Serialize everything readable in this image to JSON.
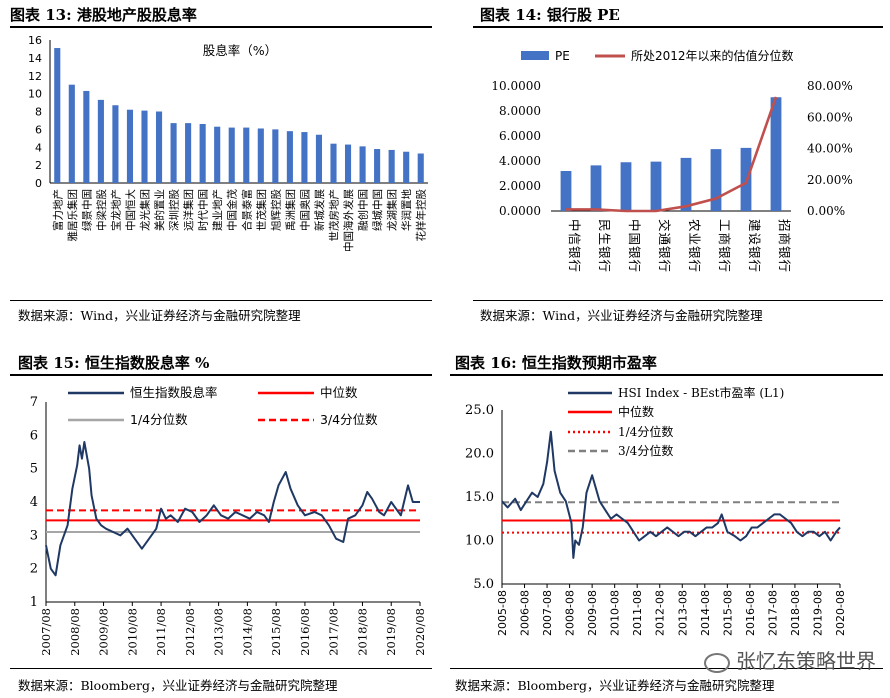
{
  "charts": [
    {
      "title": "图表 13:  港股地产股股息率",
      "source": "数据来源：Wind，兴业证券经济与金融研究院整理",
      "chart_data": {
        "type": "bar",
        "legend": "股息率（%）",
        "categories": [
          "富力地产",
          "雅居乐集团",
          "绿景中国",
          "中梁控股",
          "宝龙地产",
          "中国恒大",
          "龙光集团",
          "美的置业",
          "深圳控股",
          "远洋集团",
          "时代中国",
          "建业地产",
          "中国金茂",
          "合景泰富",
          "世茂集团",
          "旭辉控股",
          "禹洲集团",
          "中国奥园",
          "新城发展",
          "世茂房地产",
          "中国海外发展",
          "融创中国",
          "绿城中国",
          "龙湖集团",
          "华润置地",
          "花样年控股"
        ],
        "values": [
          15.1,
          11.0,
          10.3,
          9.3,
          8.7,
          8.2,
          8.1,
          8.0,
          6.7,
          6.7,
          6.6,
          6.3,
          6.2,
          6.2,
          6.1,
          6.0,
          5.8,
          5.7,
          5.4,
          4.4,
          4.3,
          4.1,
          3.8,
          3.7,
          3.5,
          3.3
        ],
        "ylim": [
          0,
          16
        ],
        "yticks": [
          "0",
          "2",
          "4",
          "6",
          "8",
          "10",
          "12",
          "14",
          "16"
        ],
        "color": "#4472C4"
      }
    },
    {
      "title": "图表 14:  银行股 PE",
      "source": "数据来源：Wind，兴业证券经济与金融研究院整理",
      "chart_data": {
        "type": "bar",
        "categories": [
          "中信银行",
          "民生银行",
          "中国银行",
          "交通银行",
          "农业银行",
          "工商银行",
          "建设银行",
          "招商银行"
        ],
        "series": [
          {
            "name": "PE",
            "type": "bar",
            "axis": "left",
            "values": [
              3.2,
              3.65,
              3.9,
              3.95,
              4.25,
              4.95,
              5.05,
              9.1
            ],
            "color": "#4472C4"
          },
          {
            "name": "所处2012年以来的估值分位数",
            "type": "line",
            "axis": "right",
            "values": [
              1,
              1,
              0,
              0,
              3,
              8,
              18,
              73
            ],
            "color": "#C0504D"
          }
        ],
        "ylim_left": [
          0,
          10
        ],
        "yticks_left": [
          "0.0000",
          "2.0000",
          "4.0000",
          "6.0000",
          "8.0000",
          "10.0000"
        ],
        "ylim_right": [
          0,
          80
        ],
        "yticks_right": [
          "0.00%",
          "20.00%",
          "40.00%",
          "60.00%",
          "80.00%"
        ]
      }
    },
    {
      "title": "图表 15:  恒生指数股息率 %",
      "source": "数据来源：Bloomberg，兴业证券经济与金融研究院整理",
      "chart_data": {
        "type": "line",
        "x_start": "2007-08",
        "x_end": "2020-08",
        "xticks": [
          "2007/08",
          "2008/08",
          "2009/08",
          "2010/08",
          "2011/08",
          "2012/08",
          "2013/08",
          "2014/08",
          "2015/08",
          "2016/08",
          "2017/08",
          "2018/08",
          "2019/08",
          "2020/08"
        ],
        "ylim": [
          1,
          7
        ],
        "yticks": [
          "1",
          "2",
          "3",
          "4",
          "5",
          "6",
          "7"
        ],
        "series": [
          {
            "name": "恒生指数股息率",
            "color": "#1F3864",
            "x": [
              "2007-08",
              "2007-10",
              "2007-12",
              "2008-02",
              "2008-05",
              "2008-07",
              "2008-09",
              "2008-10",
              "2008-11",
              "2008-12",
              "2009-02",
              "2009-03",
              "2009-05",
              "2009-07",
              "2009-09",
              "2009-12",
              "2010-03",
              "2010-06",
              "2010-09",
              "2010-12",
              "2011-03",
              "2011-06",
              "2011-08",
              "2011-10",
              "2011-12",
              "2012-03",
              "2012-06",
              "2012-09",
              "2012-12",
              "2013-03",
              "2013-06",
              "2013-09",
              "2013-12",
              "2014-03",
              "2014-06",
              "2014-09",
              "2014-12",
              "2015-03",
              "2015-05",
              "2015-07",
              "2015-09",
              "2015-12",
              "2016-02",
              "2016-05",
              "2016-08",
              "2016-12",
              "2017-03",
              "2017-06",
              "2017-09",
              "2017-12",
              "2018-02",
              "2018-05",
              "2018-08",
              "2018-10",
              "2018-12",
              "2019-03",
              "2019-05",
              "2019-08",
              "2019-10",
              "2019-12",
              "2020-03",
              "2020-05",
              "2020-08"
            ],
            "values": [
              2.7,
              2.0,
              1.8,
              2.7,
              3.3,
              4.4,
              5.1,
              5.7,
              5.3,
              5.8,
              5.0,
              4.2,
              3.5,
              3.3,
              3.2,
              3.1,
              3.0,
              3.2,
              2.9,
              2.6,
              2.9,
              3.2,
              3.8,
              3.5,
              3.6,
              3.4,
              3.8,
              3.7,
              3.4,
              3.6,
              3.9,
              3.6,
              3.5,
              3.7,
              3.6,
              3.5,
              3.7,
              3.6,
              3.4,
              4.0,
              4.5,
              4.9,
              4.4,
              3.9,
              3.6,
              3.7,
              3.6,
              3.3,
              2.9,
              2.8,
              3.5,
              3.6,
              3.9,
              4.3,
              4.1,
              3.7,
              3.6,
              4.0,
              3.8,
              3.6,
              4.5,
              4.0,
              4.0
            ]
          },
          {
            "name": "中位数",
            "color": "#FF0000",
            "value": 3.45,
            "style": "solid"
          },
          {
            "name": "1/4分位数",
            "color": "#A6A6A6",
            "value": 3.1,
            "style": "solid"
          },
          {
            "name": "3/4分位数",
            "color": "#FF0000",
            "value": 3.75,
            "style": "dashed"
          }
        ]
      }
    },
    {
      "title": "图表 16:  恒生指数预期市盈率",
      "source": "数据来源：Bloomberg，兴业证券经济与金融研究院整理",
      "chart_data": {
        "type": "line",
        "x_start": "2005-08",
        "x_end": "2020-08",
        "xticks": [
          "2005-08",
          "2006-08",
          "2007-08",
          "2008-08",
          "2009-08",
          "2010-08",
          "2011-08",
          "2012-08",
          "2013-08",
          "2014-08",
          "2015-08",
          "2016-08",
          "2017-08",
          "2018-08",
          "2019-08",
          "2020-08"
        ],
        "ylim": [
          5,
          25
        ],
        "yticks": [
          "5.0",
          "10.0",
          "15.0",
          "20.0",
          "25.0"
        ],
        "series": [
          {
            "name": "HSI Index - BEst市盈率 (L1)",
            "color": "#1F3864",
            "x": [
              "2005-08",
              "2005-11",
              "2006-03",
              "2006-06",
              "2006-09",
              "2006-12",
              "2007-03",
              "2007-06",
              "2007-08",
              "2007-10",
              "2007-12",
              "2008-03",
              "2008-06",
              "2008-09",
              "2008-10",
              "2008-11",
              "2009-01",
              "2009-03",
              "2009-05",
              "2009-08",
              "2009-10",
              "2009-12",
              "2010-03",
              "2010-06",
              "2010-09",
              "2010-12",
              "2011-03",
              "2011-06",
              "2011-09",
              "2011-12",
              "2012-03",
              "2012-06",
              "2012-09",
              "2012-12",
              "2013-03",
              "2013-06",
              "2013-09",
              "2013-12",
              "2014-03",
              "2014-06",
              "2014-09",
              "2014-12",
              "2015-03",
              "2015-05",
              "2015-08",
              "2015-12",
              "2016-03",
              "2016-06",
              "2016-09",
              "2016-12",
              "2017-03",
              "2017-06",
              "2017-09",
              "2017-12",
              "2018-03",
              "2018-06",
              "2018-09",
              "2018-12",
              "2019-03",
              "2019-06",
              "2019-09",
              "2019-12",
              "2020-03",
              "2020-06",
              "2020-08"
            ],
            "values": [
              14.5,
              13.8,
              14.8,
              13.5,
              14.5,
              15.5,
              15.0,
              16.5,
              19.0,
              22.5,
              18.0,
              15.5,
              14.5,
              12.0,
              8.0,
              10.0,
              9.5,
              11.5,
              15.5,
              17.5,
              16.0,
              14.5,
              13.5,
              12.5,
              13.0,
              12.5,
              12.0,
              11.0,
              10.0,
              10.5,
              11.0,
              10.5,
              11.0,
              11.5,
              11.0,
              10.5,
              11.0,
              11.0,
              10.5,
              11.0,
              11.5,
              11.5,
              12.0,
              13.0,
              11.0,
              10.5,
              10.0,
              10.5,
              11.5,
              11.5,
              12.0,
              12.5,
              13.0,
              13.0,
              12.5,
              12.0,
              11.0,
              10.5,
              11.0,
              11.0,
              10.5,
              11.0,
              10.0,
              11.0,
              11.5
            ]
          },
          {
            "name": "中位数",
            "color": "#FF0000",
            "value": 12.3,
            "style": "solid"
          },
          {
            "name": "1/4分位数",
            "color": "#FF0000",
            "value": 10.9,
            "style": "dotted"
          },
          {
            "name": "3/4分位数",
            "color": "#808080",
            "value": 14.4,
            "style": "dashed"
          }
        ]
      }
    }
  ],
  "watermark": "张忆东策略世界"
}
